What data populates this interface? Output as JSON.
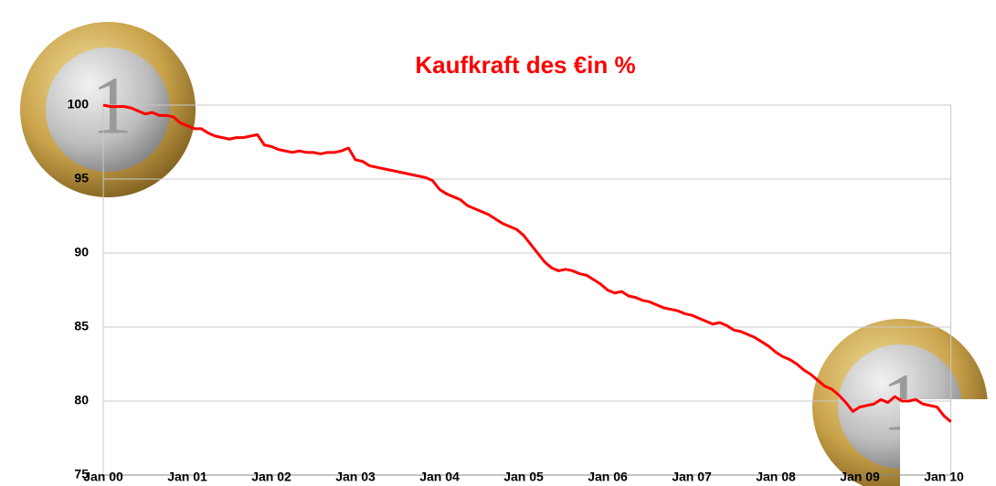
{
  "chart_data": {
    "type": "line",
    "title": "Kaufkraft des €in %",
    "categories": [
      "Jan 00",
      null,
      null,
      null,
      null,
      null,
      null,
      null,
      null,
      null,
      null,
      null,
      "Jan 01",
      null,
      null,
      null,
      null,
      null,
      null,
      null,
      null,
      null,
      null,
      null,
      "Jan 02",
      null,
      null,
      null,
      null,
      null,
      null,
      null,
      null,
      null,
      null,
      null,
      "Jan 03",
      null,
      null,
      null,
      null,
      null,
      null,
      null,
      null,
      null,
      null,
      null,
      "Jan 04",
      null,
      null,
      null,
      null,
      null,
      null,
      null,
      null,
      null,
      null,
      null,
      "Jan 05",
      null,
      null,
      null,
      null,
      null,
      null,
      null,
      null,
      null,
      null,
      null,
      "Jan 06",
      null,
      null,
      null,
      null,
      null,
      null,
      null,
      null,
      null,
      null,
      null,
      "Jan 07",
      null,
      null,
      null,
      null,
      null,
      null,
      null,
      null,
      null,
      null,
      null,
      "Jan 08",
      null,
      null,
      null,
      null,
      null,
      null,
      null,
      null,
      null,
      null,
      null,
      "Jan 09",
      null,
      null,
      null,
      null,
      null,
      null,
      null,
      null,
      null,
      null,
      null,
      "Jan 10",
      null
    ],
    "values": [
      100,
      99.9,
      99.9,
      99.9,
      99.8,
      99.6,
      99.4,
      99.5,
      99.3,
      99.3,
      99.2,
      98.8,
      98.6,
      98.4,
      98.4,
      98.1,
      97.9,
      97.8,
      97.7,
      97.8,
      97.8,
      97.9,
      98.0,
      97.3,
      97.2,
      97.0,
      96.9,
      96.8,
      96.9,
      96.8,
      96.8,
      96.7,
      96.8,
      96.8,
      96.9,
      97.1,
      96.3,
      96.2,
      95.9,
      95.8,
      95.7,
      95.6,
      95.5,
      95.4,
      95.3,
      95.2,
      95.1,
      94.9,
      94.3,
      94.0,
      93.8,
      93.6,
      93.2,
      93.0,
      92.8,
      92.6,
      92.3,
      92.0,
      91.8,
      91.6,
      91.2,
      90.6,
      90.0,
      89.4,
      89.0,
      88.8,
      88.9,
      88.8,
      88.6,
      88.5,
      88.2,
      87.9,
      87.5,
      87.3,
      87.4,
      87.1,
      87.0,
      86.8,
      86.7,
      86.5,
      86.3,
      86.2,
      86.1,
      85.9,
      85.8,
      85.6,
      85.4,
      85.2,
      85.3,
      85.1,
      84.8,
      84.7,
      84.5,
      84.3,
      84.0,
      83.7,
      83.3,
      83.0,
      82.8,
      82.5,
      82.1,
      81.8,
      81.4,
      81.0,
      80.8,
      80.4,
      79.9,
      79.3,
      79.6,
      79.7,
      79.8,
      80.1,
      79.9,
      80.3,
      80.0,
      80.0,
      80.1,
      79.8,
      79.7,
      79.6,
      79.0,
      78.6
    ],
    "color": "#ff0000",
    "ylim": [
      75,
      100
    ],
    "yticks": [
      75,
      80,
      85,
      90,
      95,
      100
    ],
    "grid": true
  }
}
